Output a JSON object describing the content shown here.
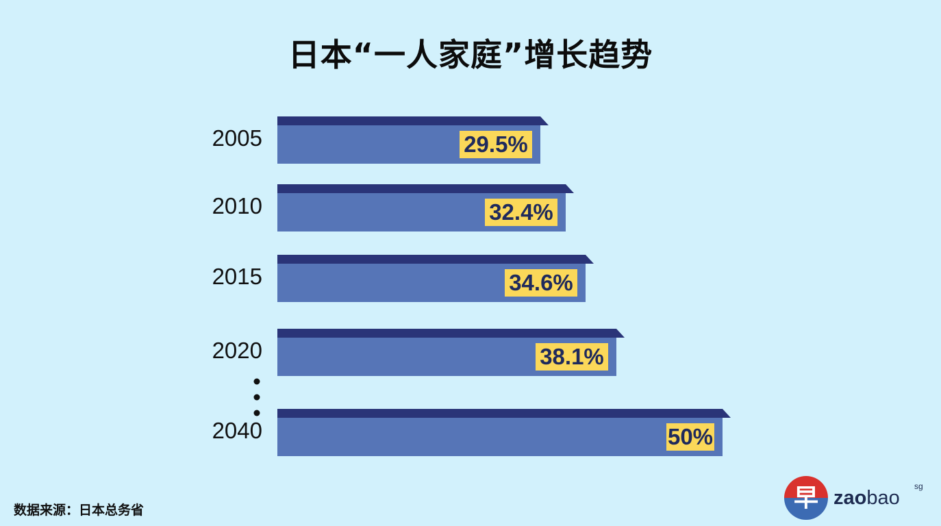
{
  "title": "日本“一人家庭”增长趋势",
  "source": "数据来源：日本总务省",
  "logo": {
    "glyph": "早",
    "word_bold": "zao",
    "word_light": "bao",
    "suffix": "sg"
  },
  "colors": {
    "background": "#d2f1fc",
    "bar_face": "#5675b7",
    "bar_top": "#2a3478",
    "label_bg": "#fbd859",
    "label_text": "#1f2a5c",
    "logo_red": "#d9322e",
    "logo_blue": "#3c6bb3"
  },
  "chart_data": {
    "type": "bar",
    "orientation": "horizontal",
    "categories": [
      "2005",
      "2010",
      "2015",
      "2020",
      "2040"
    ],
    "values": [
      29.5,
      32.4,
      34.6,
      38.1,
      50
    ],
    "value_labels": [
      "29.5%",
      "32.4%",
      "34.6%",
      "38.1%",
      "50%"
    ],
    "ellipsis_between": [
      "2020",
      "2040"
    ],
    "xlim": [
      0,
      50
    ]
  }
}
